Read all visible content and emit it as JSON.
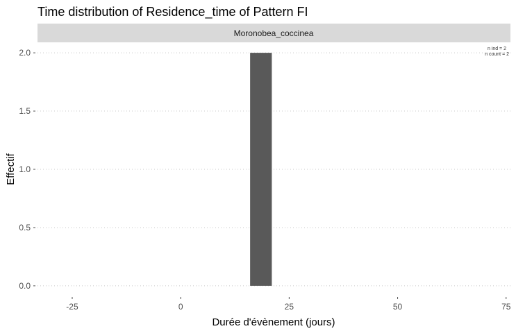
{
  "chart_data": {
    "type": "bar",
    "title": "Time distribution of Residence_time of Pattern FI",
    "facet_label": "Moronobea_coccinea",
    "xlabel": "Durée d'évènement (jours)",
    "ylabel": "Effectif",
    "x_ticks": [
      "-25",
      "0",
      "25",
      "50",
      "75"
    ],
    "y_ticks": [
      "0.0",
      "0.5",
      "1.0",
      "1.5",
      "2.0"
    ],
    "xlim": [
      -33,
      76
    ],
    "ylim": [
      -0.09,
      2.09
    ],
    "bars": [
      {
        "x_start": 16,
        "x_end": 21,
        "value": 2
      }
    ],
    "bar_color": "#595959",
    "strip_color": "#d9d9d9",
    "grid": "horizontal dotted",
    "annotation": [
      "n ind =  2",
      "n count =  2"
    ]
  }
}
